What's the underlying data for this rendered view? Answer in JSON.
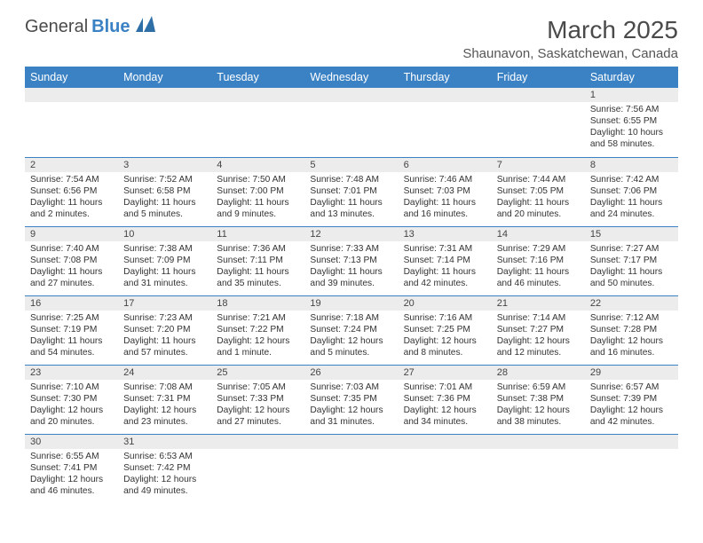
{
  "brand": {
    "part1": "General",
    "part2": "Blue",
    "logo_color": "#2f6fa8"
  },
  "title": "March 2025",
  "location": "Shaunavon, Saskatchewan, Canada",
  "header_bg": "#3b82c4",
  "header_fg": "#ffffff",
  "daynum_bg": "#ececec",
  "border_color": "#3b82c4",
  "text_color": "#333333",
  "font_family": "Arial, Helvetica, sans-serif",
  "day_headers": [
    "Sunday",
    "Monday",
    "Tuesday",
    "Wednesday",
    "Thursday",
    "Friday",
    "Saturday"
  ],
  "weeks": [
    [
      null,
      null,
      null,
      null,
      null,
      null,
      {
        "n": "1",
        "sunrise": "7:56 AM",
        "sunset": "6:55 PM",
        "daylight": "10 hours and 58 minutes."
      }
    ],
    [
      {
        "n": "2",
        "sunrise": "7:54 AM",
        "sunset": "6:56 PM",
        "daylight": "11 hours and 2 minutes."
      },
      {
        "n": "3",
        "sunrise": "7:52 AM",
        "sunset": "6:58 PM",
        "daylight": "11 hours and 5 minutes."
      },
      {
        "n": "4",
        "sunrise": "7:50 AM",
        "sunset": "7:00 PM",
        "daylight": "11 hours and 9 minutes."
      },
      {
        "n": "5",
        "sunrise": "7:48 AM",
        "sunset": "7:01 PM",
        "daylight": "11 hours and 13 minutes."
      },
      {
        "n": "6",
        "sunrise": "7:46 AM",
        "sunset": "7:03 PM",
        "daylight": "11 hours and 16 minutes."
      },
      {
        "n": "7",
        "sunrise": "7:44 AM",
        "sunset": "7:05 PM",
        "daylight": "11 hours and 20 minutes."
      },
      {
        "n": "8",
        "sunrise": "7:42 AM",
        "sunset": "7:06 PM",
        "daylight": "11 hours and 24 minutes."
      }
    ],
    [
      {
        "n": "9",
        "sunrise": "7:40 AM",
        "sunset": "7:08 PM",
        "daylight": "11 hours and 27 minutes."
      },
      {
        "n": "10",
        "sunrise": "7:38 AM",
        "sunset": "7:09 PM",
        "daylight": "11 hours and 31 minutes."
      },
      {
        "n": "11",
        "sunrise": "7:36 AM",
        "sunset": "7:11 PM",
        "daylight": "11 hours and 35 minutes."
      },
      {
        "n": "12",
        "sunrise": "7:33 AM",
        "sunset": "7:13 PM",
        "daylight": "11 hours and 39 minutes."
      },
      {
        "n": "13",
        "sunrise": "7:31 AM",
        "sunset": "7:14 PM",
        "daylight": "11 hours and 42 minutes."
      },
      {
        "n": "14",
        "sunrise": "7:29 AM",
        "sunset": "7:16 PM",
        "daylight": "11 hours and 46 minutes."
      },
      {
        "n": "15",
        "sunrise": "7:27 AM",
        "sunset": "7:17 PM",
        "daylight": "11 hours and 50 minutes."
      }
    ],
    [
      {
        "n": "16",
        "sunrise": "7:25 AM",
        "sunset": "7:19 PM",
        "daylight": "11 hours and 54 minutes."
      },
      {
        "n": "17",
        "sunrise": "7:23 AM",
        "sunset": "7:20 PM",
        "daylight": "11 hours and 57 minutes."
      },
      {
        "n": "18",
        "sunrise": "7:21 AM",
        "sunset": "7:22 PM",
        "daylight": "12 hours and 1 minute."
      },
      {
        "n": "19",
        "sunrise": "7:18 AM",
        "sunset": "7:24 PM",
        "daylight": "12 hours and 5 minutes."
      },
      {
        "n": "20",
        "sunrise": "7:16 AM",
        "sunset": "7:25 PM",
        "daylight": "12 hours and 8 minutes."
      },
      {
        "n": "21",
        "sunrise": "7:14 AM",
        "sunset": "7:27 PM",
        "daylight": "12 hours and 12 minutes."
      },
      {
        "n": "22",
        "sunrise": "7:12 AM",
        "sunset": "7:28 PM",
        "daylight": "12 hours and 16 minutes."
      }
    ],
    [
      {
        "n": "23",
        "sunrise": "7:10 AM",
        "sunset": "7:30 PM",
        "daylight": "12 hours and 20 minutes."
      },
      {
        "n": "24",
        "sunrise": "7:08 AM",
        "sunset": "7:31 PM",
        "daylight": "12 hours and 23 minutes."
      },
      {
        "n": "25",
        "sunrise": "7:05 AM",
        "sunset": "7:33 PM",
        "daylight": "12 hours and 27 minutes."
      },
      {
        "n": "26",
        "sunrise": "7:03 AM",
        "sunset": "7:35 PM",
        "daylight": "12 hours and 31 minutes."
      },
      {
        "n": "27",
        "sunrise": "7:01 AM",
        "sunset": "7:36 PM",
        "daylight": "12 hours and 34 minutes."
      },
      {
        "n": "28",
        "sunrise": "6:59 AM",
        "sunset": "7:38 PM",
        "daylight": "12 hours and 38 minutes."
      },
      {
        "n": "29",
        "sunrise": "6:57 AM",
        "sunset": "7:39 PM",
        "daylight": "12 hours and 42 minutes."
      }
    ],
    [
      {
        "n": "30",
        "sunrise": "6:55 AM",
        "sunset": "7:41 PM",
        "daylight": "12 hours and 46 minutes."
      },
      {
        "n": "31",
        "sunrise": "6:53 AM",
        "sunset": "7:42 PM",
        "daylight": "12 hours and 49 minutes."
      },
      null,
      null,
      null,
      null,
      null
    ]
  ],
  "labels": {
    "sunrise": "Sunrise:",
    "sunset": "Sunset:",
    "daylight": "Daylight:"
  }
}
